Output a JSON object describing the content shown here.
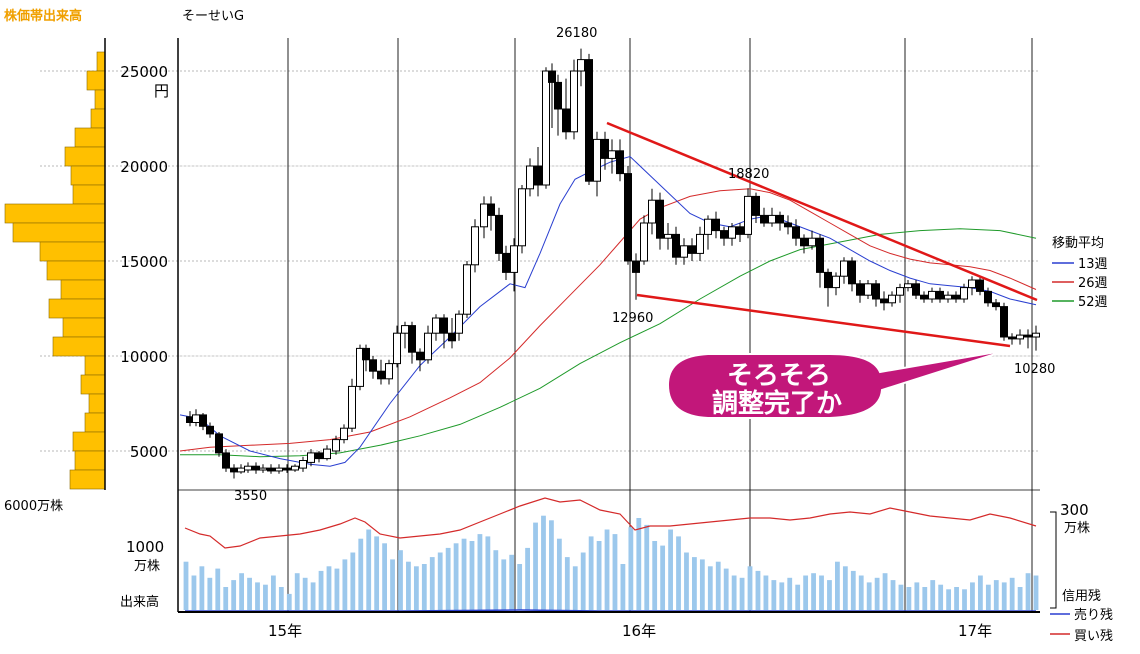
{
  "chart_data": {
    "type": "candlestick",
    "title": "そーせいG",
    "unit_label": "円",
    "ylim": [
      3000,
      27000
    ],
    "y_ticks": [
      5000,
      10000,
      15000,
      20000,
      25000
    ],
    "x_labels": [
      "15年",
      "16年",
      "17年"
    ],
    "price_annotations": [
      {
        "value": 26180,
        "label": "26180"
      },
      {
        "value": 18820,
        "label": "18820"
      },
      {
        "value": 12960,
        "label": "12960"
      },
      {
        "value": 3550,
        "label": "3550"
      },
      {
        "value": 10280,
        "label": "10280"
      }
    ],
    "moving_average": {
      "title": "移動平均",
      "series": [
        {
          "name": "13週",
          "color": "#2a3fd0"
        },
        {
          "name": "26週",
          "color": "#d42a2a"
        },
        {
          "name": "52週",
          "color": "#1f9a2a"
        }
      ]
    },
    "volume_profile": {
      "title": "株価帯出来高",
      "scale_label": "6000万株",
      "color": "#ffc000"
    },
    "volume": {
      "label": "出来高",
      "scale_tick": "1000",
      "scale_unit": "万株",
      "color": "#9cc8ec"
    },
    "margin": {
      "scale_tick": "300",
      "scale_unit": "万株",
      "title": "信用残",
      "sell_label": "売り残",
      "buy_label": "買い残",
      "sell_color": "#2a3fd0",
      "buy_color": "#d42a2a"
    },
    "callout_lines": [
      "そろそろ",
      "調整完了か"
    ],
    "callout_color": "#c2177a"
  }
}
